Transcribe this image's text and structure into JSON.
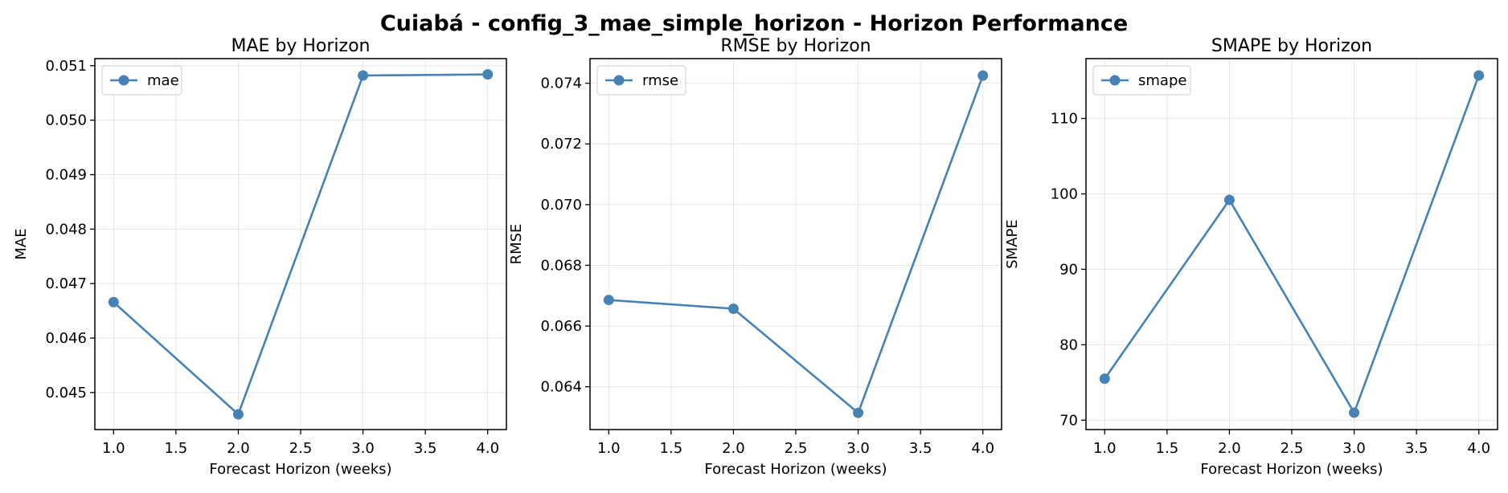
{
  "figure": {
    "title": "Cuiabá - config_3_mae_simple_horizon - Horizon Performance"
  },
  "colors": {
    "series": "#4682b4"
  },
  "chart_data": [
    {
      "type": "line",
      "title": "MAE by Horizon",
      "xlabel": "Forecast Horizon (weeks)",
      "ylabel": "MAE",
      "x": [
        1.0,
        2.0,
        3.0,
        4.0
      ],
      "series": [
        {
          "name": "mae",
          "values": [
            0.04666,
            0.0446,
            0.05082,
            0.05084
          ]
        }
      ],
      "xlim": [
        0.85,
        4.15
      ],
      "ylim": [
        0.04432,
        0.05113
      ],
      "xticks": [
        "1.0",
        "1.5",
        "2.0",
        "2.5",
        "3.0",
        "3.5",
        "4.0"
      ],
      "yticks": [
        "0.045",
        "0.046",
        "0.047",
        "0.048",
        "0.049",
        "0.050",
        "0.051"
      ],
      "grid": true,
      "legend": "upper left"
    },
    {
      "type": "line",
      "title": "RMSE by Horizon",
      "xlabel": "Forecast Horizon (weeks)",
      "ylabel": "RMSE",
      "x": [
        1.0,
        2.0,
        3.0,
        4.0
      ],
      "series": [
        {
          "name": "rmse",
          "values": [
            0.06686,
            0.06657,
            0.06314,
            0.07425
          ]
        }
      ],
      "xlim": [
        0.85,
        4.15
      ],
      "ylim": [
        0.06259,
        0.07481
      ],
      "xticks": [
        "1.0",
        "1.5",
        "2.0",
        "2.5",
        "3.0",
        "3.5",
        "4.0"
      ],
      "yticks": [
        "0.064",
        "0.066",
        "0.068",
        "0.070",
        "0.072",
        "0.074"
      ],
      "grid": true,
      "legend": "upper left"
    },
    {
      "type": "line",
      "title": "SMAPE by Horizon",
      "xlabel": "Forecast Horizon (weeks)",
      "ylabel": "SMAPE",
      "x": [
        1.0,
        2.0,
        3.0,
        4.0
      ],
      "series": [
        {
          "name": "smape",
          "values": [
            75.5,
            99.2,
            71.0,
            115.7
          ]
        }
      ],
      "xlim": [
        0.85,
        4.15
      ],
      "ylim": [
        68.76,
        117.93
      ],
      "xticks": [
        "1.0",
        "1.5",
        "2.0",
        "2.5",
        "3.0",
        "3.5",
        "4.0"
      ],
      "yticks": [
        "70",
        "80",
        "90",
        "100",
        "110"
      ],
      "grid": true,
      "legend": "upper left"
    }
  ]
}
